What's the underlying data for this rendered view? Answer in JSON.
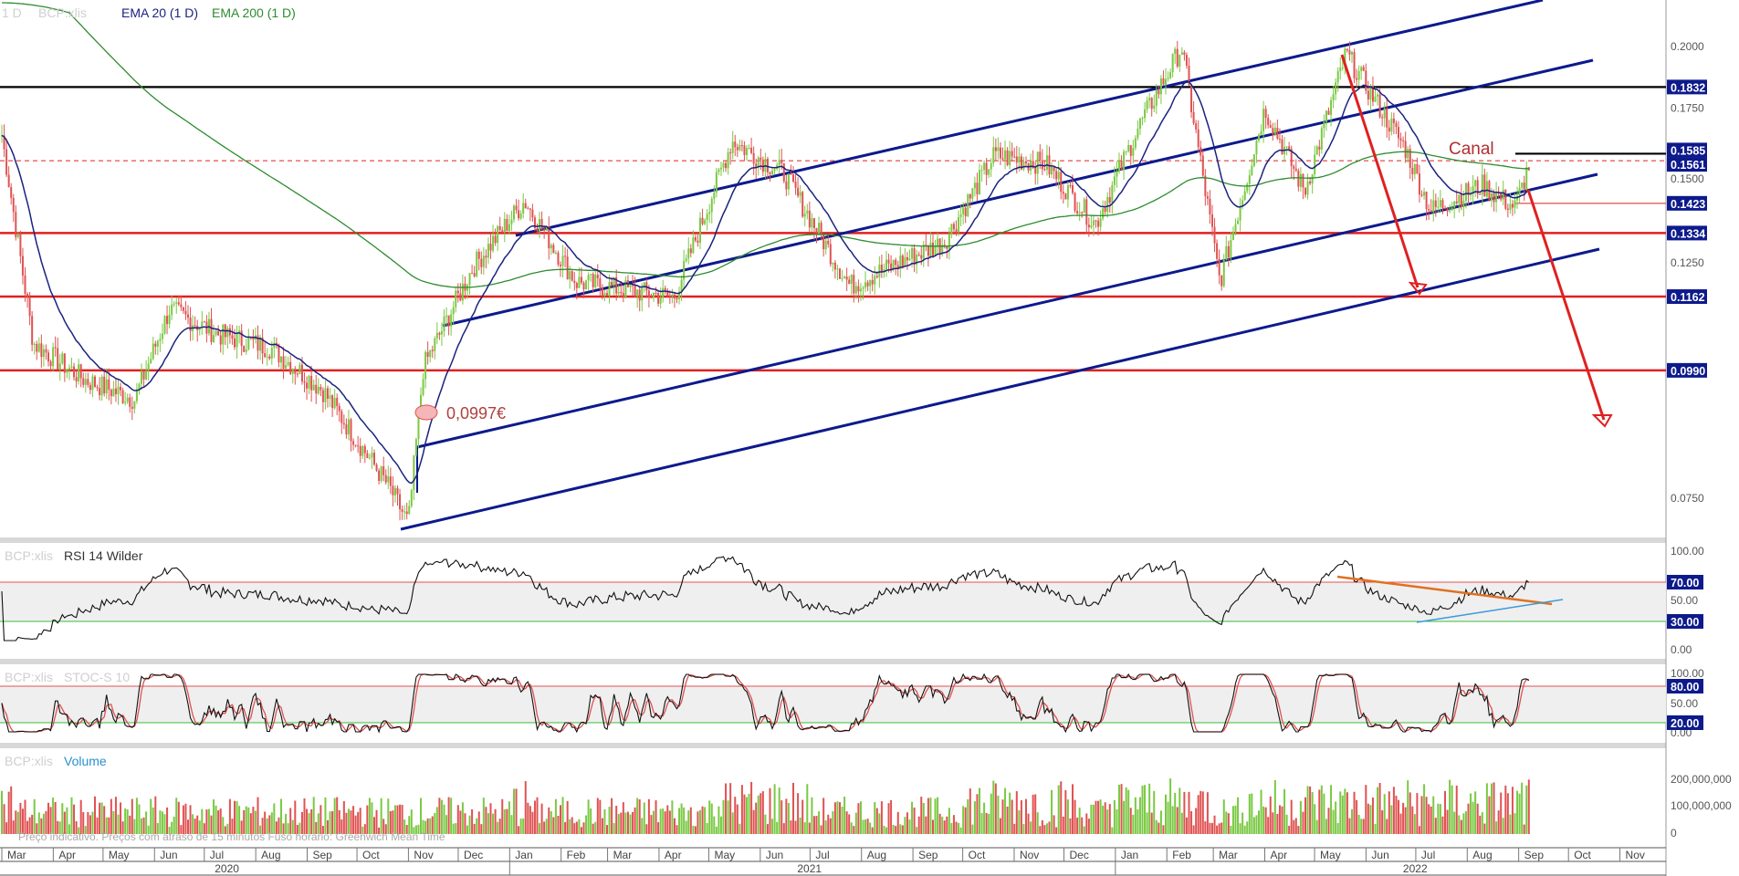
{
  "header": {
    "interval": "1 D",
    "symbol": "BCP:xlis",
    "ema20": "EMA 20  (1 D)",
    "ema200": "EMA 200  (1 D)"
  },
  "annotations": {
    "canal": "Canal",
    "low_price": "0,0997€"
  },
  "footer_note": "Preço indicativo. Preços com atraso de 15 minutos    Fuso horário: Greenwich Mean Time",
  "colors": {
    "up": "#7ac943",
    "down": "#e05252",
    "ema20": "#1a237e",
    "ema200": "#2e8b2e",
    "channel": "#0d1a8c",
    "support": "#e02020",
    "resistance": "#000000",
    "rsi_band": "#efefef",
    "overbought": "#e05252",
    "oversold": "#3bbf3b",
    "volume_label": "#2a8fd0"
  },
  "price_axis": {
    "ticks": [
      "0.2000",
      "0.1750",
      "0.1500",
      "0.1250",
      "0.0750"
    ],
    "labels": [
      {
        "text": "0.1832",
        "value": 0.1832,
        "color": "#0d1a8c"
      },
      {
        "text": "0.1585",
        "value": 0.1585,
        "color": "#0d1a8c"
      },
      {
        "text": "0.1561",
        "value": 0.1561,
        "color": "#0d1a8c"
      },
      {
        "text": "0.1423",
        "value": 0.1423,
        "color": "#0d1a8c"
      },
      {
        "text": "0.1334",
        "value": 0.1334,
        "color": "#0d1a8c"
      },
      {
        "text": "0.1162",
        "value": 0.1162,
        "color": "#0d1a8c"
      },
      {
        "text": "0.0990",
        "value": 0.099,
        "color": "#0d1a8c"
      }
    ]
  },
  "rsi_panel": {
    "title_symbol": "BCP:xlis",
    "title": "RSI 14 Wilder",
    "ticks": [
      "100.00",
      "50.00",
      "0.00"
    ],
    "labels": [
      "70.00",
      "30.00"
    ]
  },
  "stoch_panel": {
    "title_symbol": "BCP:xlis",
    "title": "STOC-S 10",
    "ticks": [
      "100.00",
      "50.00",
      "0.00"
    ],
    "labels": [
      "80.00",
      "20.00"
    ]
  },
  "volume_panel": {
    "title_symbol": "BCP:xlis",
    "title": "Volume",
    "ticks": [
      "200,000,000",
      "100,000,000",
      "0"
    ]
  },
  "time_axis": {
    "months": [
      "Mar",
      "Apr",
      "May",
      "Jun",
      "Jul",
      "Aug",
      "Sep",
      "Oct",
      "Nov",
      "Dec",
      "Jan",
      "Feb",
      "Mar",
      "Apr",
      "May",
      "Jun",
      "Jul",
      "Aug",
      "Sep",
      "Oct",
      "Nov",
      "Dec",
      "Jan",
      "Feb",
      "Mar",
      "Apr",
      "May",
      "Jun",
      "Jul",
      "Aug",
      "Sep",
      "Oct",
      "Nov"
    ],
    "years": [
      "2020",
      "2021",
      "2022"
    ]
  },
  "chart_data": {
    "type": "candlestick",
    "symbol": "BCP:xlis",
    "interval": "1 D",
    "start": "2020-03",
    "end": "2022-11",
    "price_path": [
      {
        "date": "2020-03-01",
        "close": 0.165
      },
      {
        "date": "2020-03-20",
        "close": 0.105
      },
      {
        "date": "2020-04-20",
        "close": 0.097
      },
      {
        "date": "2020-05-20",
        "close": 0.093
      },
      {
        "date": "2020-06-10",
        "close": 0.113
      },
      {
        "date": "2020-07-10",
        "close": 0.107
      },
      {
        "date": "2020-08-10",
        "close": 0.104
      },
      {
        "date": "2020-09-10",
        "close": 0.095
      },
      {
        "date": "2020-10-20",
        "close": 0.077
      },
      {
        "date": "2020-11-01",
        "close": 0.071
      },
      {
        "date": "2020-11-10",
        "close": 0.0997
      },
      {
        "date": "2020-12-10",
        "close": 0.124
      },
      {
        "date": "2021-01-10",
        "close": 0.143
      },
      {
        "date": "2021-02-10",
        "close": 0.12
      },
      {
        "date": "2021-04-10",
        "close": 0.116
      },
      {
        "date": "2021-05-15",
        "close": 0.163
      },
      {
        "date": "2021-06-15",
        "close": 0.152
      },
      {
        "date": "2021-07-25",
        "close": 0.119
      },
      {
        "date": "2021-09-20",
        "close": 0.131
      },
      {
        "date": "2021-10-20",
        "close": 0.158
      },
      {
        "date": "2021-11-20",
        "close": 0.155
      },
      {
        "date": "2021-12-20",
        "close": 0.136
      },
      {
        "date": "2022-01-15",
        "close": 0.168
      },
      {
        "date": "2022-02-10",
        "close": 0.2
      },
      {
        "date": "2022-03-05",
        "close": 0.12
      },
      {
        "date": "2022-04-01",
        "close": 0.175
      },
      {
        "date": "2022-04-25",
        "close": 0.146
      },
      {
        "date": "2022-05-20",
        "close": 0.197
      },
      {
        "date": "2022-06-25",
        "close": 0.16
      },
      {
        "date": "2022-07-10",
        "close": 0.14
      },
      {
        "date": "2022-08-10",
        "close": 0.148
      },
      {
        "date": "2022-08-30",
        "close": 0.141
      },
      {
        "date": "2022-09-08",
        "close": 0.1561
      }
    ],
    "indicators": [
      "EMA 20 (1 D)",
      "EMA 200 (1 D)",
      "RSI 14 Wilder",
      "STOC-S 10",
      "Volume"
    ],
    "horizontal_levels": [
      0.1832,
      0.1585,
      0.1561,
      0.1423,
      0.1334,
      0.1162,
      0.099
    ],
    "rsi_bands": [
      30,
      70
    ],
    "stoch_bands": [
      20,
      80
    ],
    "y_scale": "log",
    "ylim": [
      0.069,
      0.22
    ],
    "annotations": [
      "Canal",
      "0,0997€"
    ]
  }
}
